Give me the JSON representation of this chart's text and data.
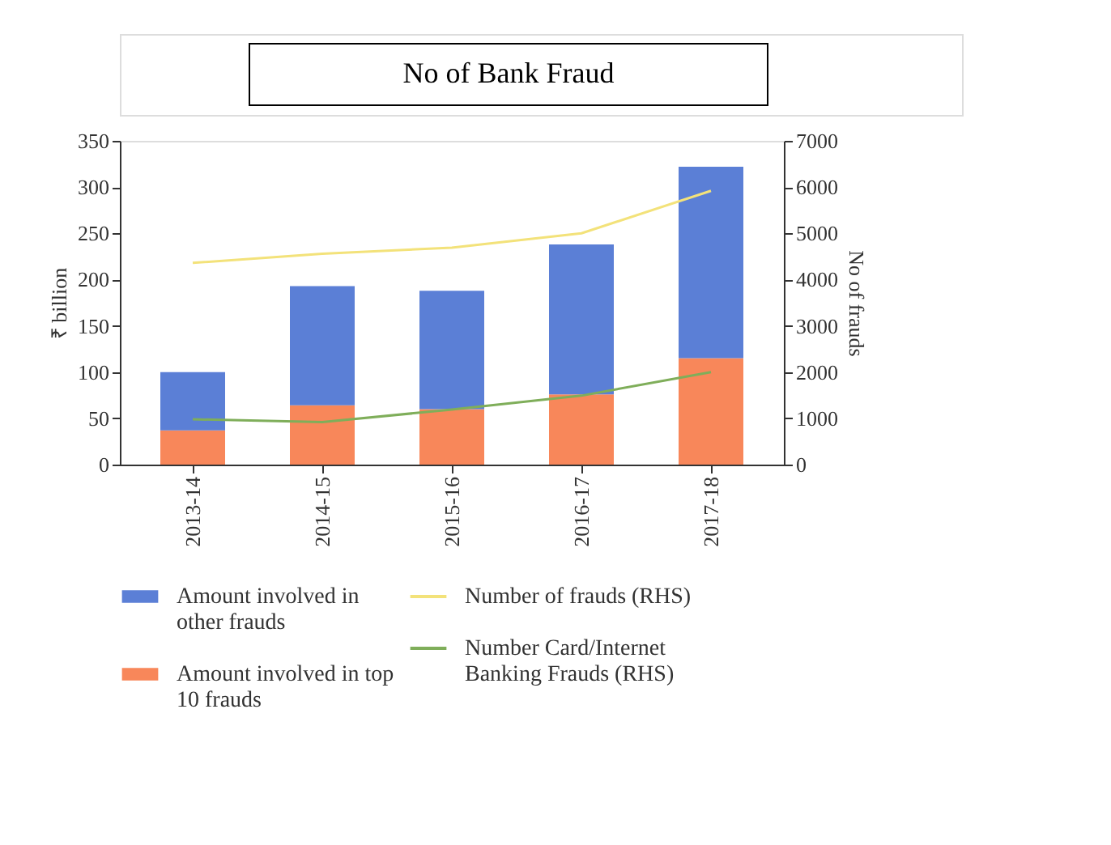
{
  "chart_data": {
    "type": "bar",
    "title": "No of Bank Fraud",
    "ylabel": "₹ billion",
    "y2label": "No of frauds",
    "categories": [
      "2013-14",
      "2014-15",
      "2015-16",
      "2016-17",
      "2017-18"
    ],
    "stacked": true,
    "series": [
      {
        "name": "Amount involved in top 10 frauds",
        "color": "#f8875a",
        "values": [
          37,
          64,
          60,
          76,
          115
        ]
      },
      {
        "name": "Amount involved in other frauds",
        "color": "#5b7fd6",
        "values": [
          63,
          129,
          128,
          162,
          207
        ]
      },
      {
        "name": "Number of frauds (RHS)",
        "type": "line",
        "axis": "y2",
        "color": "#f3e27a",
        "values": [
          4360,
          4560,
          4690,
          5000,
          5920
        ]
      },
      {
        "name": "Number Card/Internet Banking Frauds (RHS)",
        "type": "line",
        "axis": "y2",
        "color": "#7fae5a",
        "values": [
          980,
          920,
          1190,
          1490,
          2000
        ]
      }
    ],
    "ylim": [
      0,
      350
    ],
    "yticks": [
      0,
      50,
      100,
      150,
      200,
      250,
      300,
      350
    ],
    "y2lim": [
      0,
      7000
    ],
    "y2ticks": [
      0,
      1000,
      2000,
      3000,
      4000,
      5000,
      6000,
      7000
    ],
    "grid": false,
    "legend": "bottom"
  }
}
